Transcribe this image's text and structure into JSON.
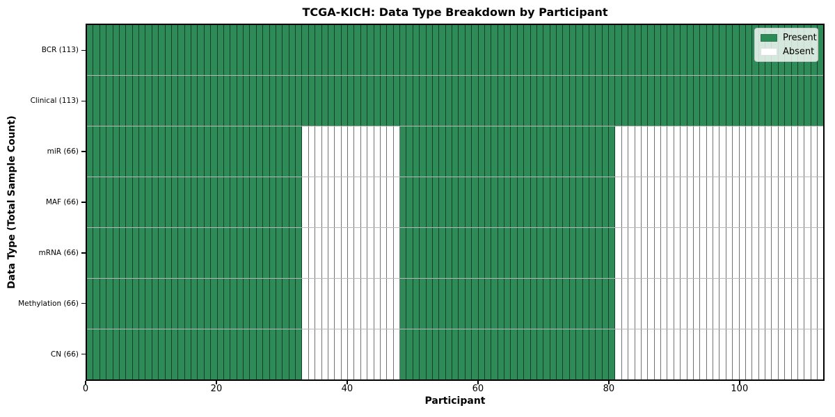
{
  "chart_data": {
    "type": "heatmap",
    "title": "TCGA-KICH: Data Type Breakdown by Participant",
    "xlabel": "Participant",
    "ylabel": "Data Type (Total Sample Count)",
    "x_range": [
      0,
      113
    ],
    "x_ticks": [
      0,
      20,
      40,
      60,
      80,
      100
    ],
    "n_participants": 113,
    "grid": "per-cell borders, no axis grid",
    "legend_position": "upper right",
    "rows": [
      {
        "key": "bcr",
        "label": "BCR (113)",
        "total_samples": 113,
        "present_ranges": [
          [
            0,
            113
          ]
        ]
      },
      {
        "key": "clinical",
        "label": "Clinical (113)",
        "total_samples": 113,
        "present_ranges": [
          [
            0,
            113
          ]
        ]
      },
      {
        "key": "mir",
        "label": "miR (66)",
        "total_samples": 66,
        "present_ranges": [
          [
            0,
            33
          ],
          [
            48,
            81
          ]
        ]
      },
      {
        "key": "maf",
        "label": "MAF (66)",
        "total_samples": 66,
        "present_ranges": [
          [
            0,
            33
          ],
          [
            48,
            81
          ]
        ]
      },
      {
        "key": "mrna",
        "label": "mRNA (66)",
        "total_samples": 66,
        "present_ranges": [
          [
            0,
            33
          ],
          [
            48,
            81
          ]
        ]
      },
      {
        "key": "methylation",
        "label": "Methylation (66)",
        "total_samples": 66,
        "present_ranges": [
          [
            0,
            33
          ],
          [
            48,
            81
          ]
        ]
      },
      {
        "key": "cn",
        "label": "CN (66)",
        "total_samples": 66,
        "present_ranges": [
          [
            0,
            33
          ],
          [
            48,
            81
          ]
        ]
      }
    ],
    "legend": {
      "entries": [
        {
          "label": "Present",
          "color": "#2e8b57"
        },
        {
          "label": "Absent",
          "color": "#ffffff"
        }
      ]
    },
    "colors": {
      "present": "#2e8b57",
      "absent": "#ffffff"
    }
  }
}
